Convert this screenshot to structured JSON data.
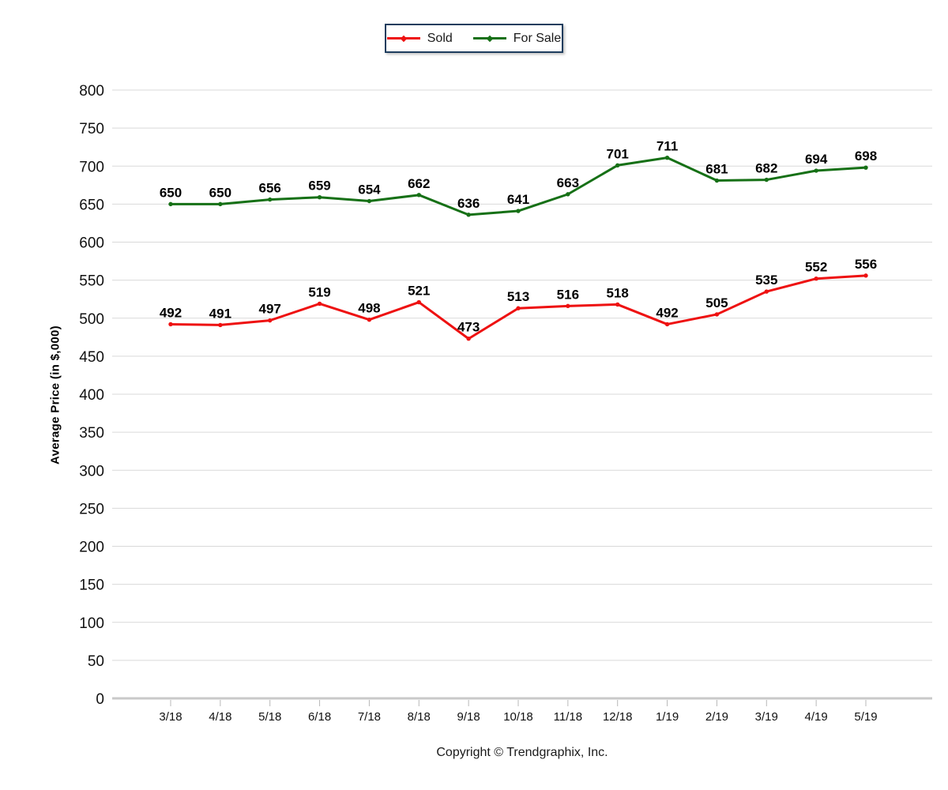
{
  "page": {
    "background": "#ffffff"
  },
  "legend": {
    "border_color": "#1e3d5e",
    "position": "top-center"
  },
  "y_axis_title": "Average Price (in $,000)",
  "footer": {
    "text": "Copyright © Trendgraphix, Inc."
  },
  "chart_data": {
    "type": "line",
    "title": "",
    "xlabel": "",
    "ylabel": "Average Price (in $,000)",
    "ylim": [
      0,
      800
    ],
    "ytick_step": 50,
    "yticks": [
      0,
      50,
      100,
      150,
      200,
      250,
      300,
      350,
      400,
      450,
      500,
      550,
      600,
      650,
      700,
      750,
      800
    ],
    "grid": true,
    "legend_position": "top-center",
    "show_data_labels": true,
    "categories": [
      "3/18",
      "4/18",
      "5/18",
      "6/18",
      "7/18",
      "8/18",
      "9/18",
      "10/18",
      "11/18",
      "12/18",
      "1/19",
      "2/19",
      "3/19",
      "4/19",
      "5/19"
    ],
    "series": [
      {
        "name": "Sold",
        "color": "#ee1111",
        "values": [
          492,
          491,
          497,
          519,
          498,
          521,
          473,
          513,
          516,
          518,
          492,
          505,
          535,
          552,
          556
        ]
      },
      {
        "name": "For Sale",
        "color": "#167016",
        "values": [
          650,
          650,
          656,
          659,
          654,
          662,
          636,
          641,
          663,
          701,
          711,
          681,
          682,
          694,
          698
        ]
      }
    ]
  }
}
